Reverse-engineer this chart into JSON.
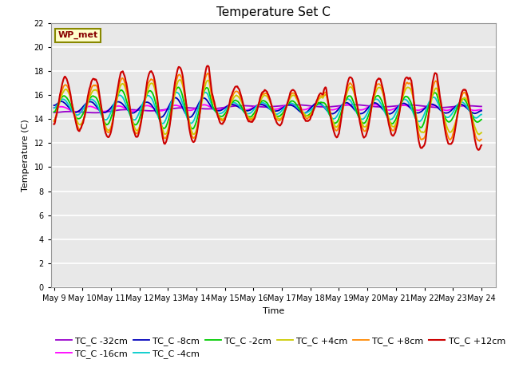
{
  "title": "Temperature Set C",
  "xlabel": "Time",
  "ylabel": "Temperature (C)",
  "ylim": [
    0,
    22
  ],
  "yticks": [
    0,
    2,
    4,
    6,
    8,
    10,
    12,
    14,
    16,
    18,
    20,
    22
  ],
  "x_tick_labels": [
    "May 9",
    "May 10",
    "May 11",
    "May 12",
    "May 13",
    "May 14",
    "May 15",
    "May 16",
    "May 17",
    "May 18",
    "May 19",
    "May 20",
    "May 21",
    "May 22",
    "May 23",
    "May 24"
  ],
  "legend_label": "WP_met",
  "series_colors": {
    "TC_C -32cm": "#9900cc",
    "TC_C -16cm": "#ff00ff",
    "TC_C -8cm": "#0000bb",
    "TC_C -4cm": "#00cccc",
    "TC_C -2cm": "#00cc00",
    "TC_C +4cm": "#cccc00",
    "TC_C +8cm": "#ff8800",
    "TC_C +12cm": "#cc0000"
  },
  "bg_color": "#ffffff",
  "plot_bg_color": "#e8e8e8",
  "title_fontsize": 11,
  "axis_fontsize": 8,
  "tick_fontsize": 7,
  "legend_fontsize": 8
}
